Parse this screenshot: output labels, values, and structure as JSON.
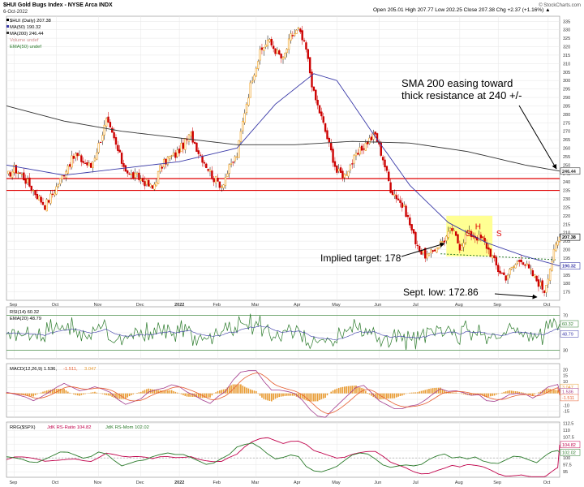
{
  "header": {
    "symbol_line": "$HUI Gold Bugs Index - NYSE Arca INDX",
    "date": "6-Oct-2022",
    "ohlc": "Open 205.01  High 207.77  Low 202.25  Close 207.38  Chg +2.37 (+1.16%) ▲",
    "watermark": "© StockCharts.com"
  },
  "colors": {
    "bull": "#f0a020",
    "bear": "#cc0000",
    "ma50": "#3a3aa8",
    "ma200": "#333333",
    "resistance": "#e00000",
    "hs_box": "#ffff80",
    "rsi": "#2a7a2a",
    "macd": "#a23a8c",
    "signal": "#e65c2e",
    "hist": "#e89a30",
    "rrg_ratio": "#c0004a",
    "rrg_mom": "#2a7a2a",
    "grid": "#e6e6e6"
  },
  "chart_data": [
    {
      "type": "line",
      "title": "$HUI (Daily) 207.38",
      "ylim": [
        170,
        338
      ],
      "yticks": [
        175,
        180,
        185,
        190,
        195,
        200,
        205,
        210,
        215,
        220,
        225,
        230,
        235,
        240,
        245,
        250,
        255,
        260,
        265,
        270,
        275,
        280,
        285,
        290,
        295,
        300,
        305,
        310,
        315,
        320,
        325,
        330,
        335
      ],
      "xlabels": [
        "Sep",
        "Oct",
        "Nov",
        "Dec",
        "2022",
        "Feb",
        "Mar",
        "Apr",
        "May",
        "Jun",
        "Jul",
        "Aug",
        "Sep",
        "Oct"
      ],
      "candles_note": "daily candles Sep-2021 to 6-Oct-2022",
      "price_path": [
        [
          0,
          243
        ],
        [
          4,
          248
        ],
        [
          8,
          244
        ],
        [
          12,
          238
        ],
        [
          16,
          232
        ],
        [
          20,
          226
        ],
        [
          24,
          233
        ],
        [
          28,
          241
        ],
        [
          32,
          250
        ],
        [
          36,
          256
        ],
        [
          40,
          252
        ],
        [
          44,
          249
        ],
        [
          48,
          262
        ],
        [
          52,
          276
        ],
        [
          56,
          265
        ],
        [
          60,
          252
        ],
        [
          64,
          244
        ],
        [
          68,
          243
        ],
        [
          72,
          240
        ],
        [
          76,
          236
        ],
        [
          80,
          248
        ],
        [
          84,
          254
        ],
        [
          88,
          256
        ],
        [
          92,
          262
        ],
        [
          96,
          268
        ],
        [
          100,
          258
        ],
        [
          104,
          250
        ],
        [
          108,
          242
        ],
        [
          112,
          238
        ],
        [
          116,
          248
        ],
        [
          120,
          256
        ],
        [
          124,
          282
        ],
        [
          128,
          302
        ],
        [
          132,
          316
        ],
        [
          136,
          324
        ],
        [
          140,
          318
        ],
        [
          144,
          312
        ],
        [
          148,
          326
        ],
        [
          152,
          330
        ],
        [
          156,
          318
        ],
        [
          160,
          292
        ],
        [
          164,
          278
        ],
        [
          168,
          262
        ],
        [
          172,
          246
        ],
        [
          176,
          244
        ],
        [
          180,
          252
        ],
        [
          184,
          258
        ],
        [
          188,
          264
        ],
        [
          192,
          268
        ],
        [
          196,
          254
        ],
        [
          200,
          236
        ],
        [
          204,
          230
        ],
        [
          208,
          222
        ],
        [
          212,
          208
        ],
        [
          216,
          198
        ],
        [
          220,
          196
        ],
        [
          224,
          202
        ],
        [
          228,
          206
        ],
        [
          232,
          212
        ],
        [
          236,
          202
        ],
        [
          240,
          210
        ],
        [
          244,
          208
        ],
        [
          248,
          206
        ],
        [
          252,
          198
        ],
        [
          256,
          188
        ],
        [
          260,
          184
        ],
        [
          264,
          190
        ],
        [
          268,
          195
        ],
        [
          272,
          188
        ],
        [
          276,
          182
        ],
        [
          280,
          176
        ],
        [
          284,
          194
        ],
        [
          286,
          202
        ],
        [
          288,
          207.38
        ]
      ],
      "series": [
        {
          "name": "MA(50) 190.32",
          "values": [
            [
              0,
              250
            ],
            [
              30,
              244
            ],
            [
              60,
              248
            ],
            [
              90,
              252
            ],
            [
              120,
              260
            ],
            [
              140,
              286
            ],
            [
              160,
              304
            ],
            [
              172,
              300
            ],
            [
              190,
              270
            ],
            [
              210,
              238
            ],
            [
              230,
              216
            ],
            [
              250,
              204
            ],
            [
              270,
              196
            ],
            [
              288,
              190.32
            ]
          ]
        },
        {
          "name": "MA(200) 246.44",
          "values": [
            [
              0,
              285
            ],
            [
              30,
              276
            ],
            [
              60,
              270
            ],
            [
              90,
              266
            ],
            [
              120,
              262
            ],
            [
              150,
              262
            ],
            [
              180,
              264
            ],
            [
              210,
              263
            ],
            [
              240,
              258
            ],
            [
              270,
              250
            ],
            [
              288,
              246.44
            ]
          ]
        }
      ],
      "legend_extra": [
        "Volume undef",
        "EMA(50) undef"
      ],
      "resistance_lines": [
        242,
        235
      ],
      "last_labels": [
        "246.44",
        "207.38",
        "190.32"
      ],
      "annotations": {
        "hs_letters": [
          "S",
          "H",
          "S"
        ],
        "sma_note_line1": "SMA 200 easing toward",
        "sma_note_line2": "thick resistance at 240 +/-",
        "target_note": "Implied target: 178",
        "low_note": "Sept. low: 172.86"
      }
    },
    {
      "type": "line",
      "title": "RSI(14) 60.32",
      "ylim": [
        20,
        80
      ],
      "yticks": [
        30,
        50,
        70
      ],
      "series": [
        {
          "name": "RSI(14) 60.32"
        },
        {
          "name": "EMA(20) 48.79"
        }
      ],
      "last_labels": [
        "60.32",
        "48.79"
      ]
    },
    {
      "type": "line",
      "title": "MACD(12,26,9)",
      "ylim": [
        -20,
        25
      ],
      "yticks": [
        -15,
        -10,
        -5,
        0,
        5,
        10,
        15,
        20
      ],
      "series": [
        {
          "name": "MACD 1.536"
        },
        {
          "name": "Signal -1.511"
        },
        {
          "name": "Histogram 3.047"
        }
      ],
      "legend": [
        "MACD(12,26,9) 1.536,",
        "-1.511,",
        "3.047"
      ],
      "last_labels": [
        "3.047",
        "1.536",
        "-1.511"
      ]
    },
    {
      "type": "line",
      "title": "RRG($SPX)",
      "ylim": [
        93,
        113
      ],
      "yticks": [
        95,
        97.5,
        100,
        102.5,
        105,
        107.5,
        110,
        112.5
      ],
      "ytick_labels": [
        "95",
        "97.5",
        "100",
        "102.5",
        "105",
        "107.5",
        "110",
        "112.5"
      ],
      "series": [
        {
          "name": "JdK RS-Ratio 104.82"
        },
        {
          "name": "JdK RS-Mom 102.02"
        }
      ],
      "legend": [
        "RRG($SPX)",
        "JdK RS-Ratio 104.82",
        "JdK RS-Mom 102.02"
      ],
      "last_labels": [
        "104.82",
        "102.02"
      ]
    }
  ]
}
